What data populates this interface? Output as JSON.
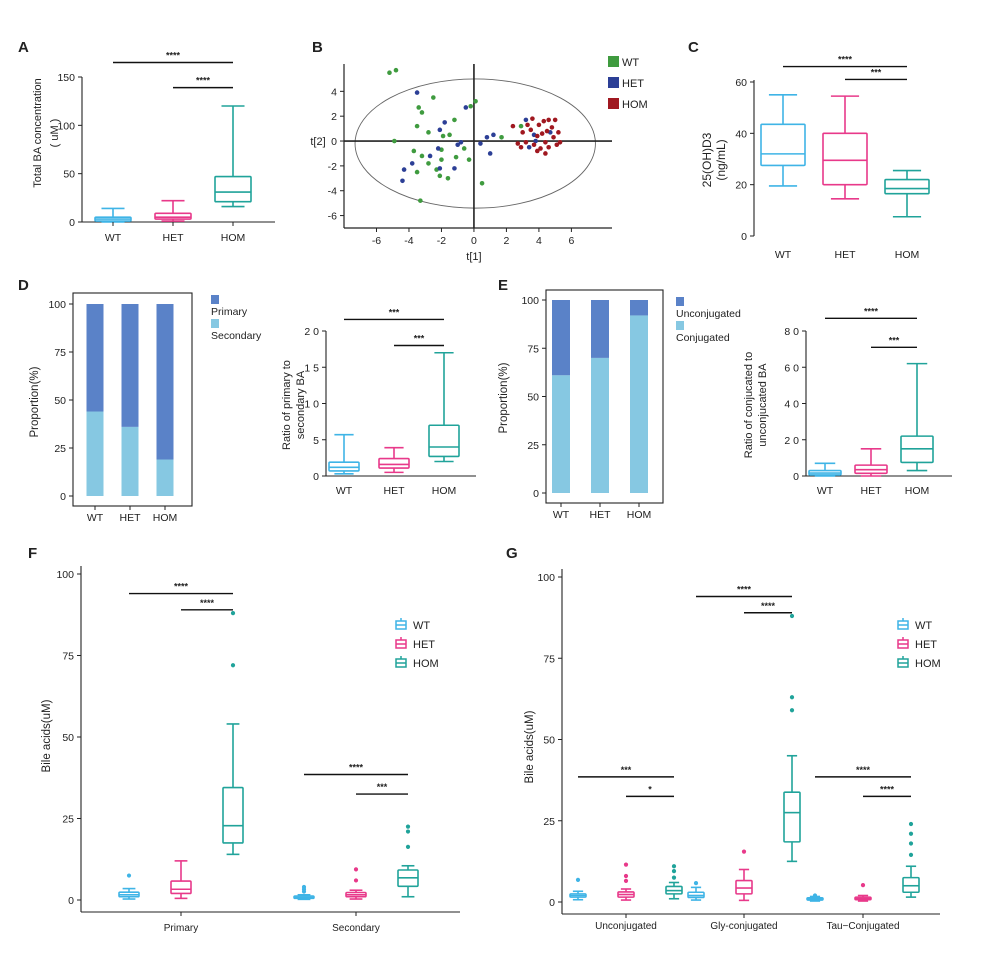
{
  "colors": {
    "WT": "#3fb4e6",
    "HET": "#e8398a",
    "HOM": "#20a39a",
    "pcaWT": "#3f9b3f",
    "pcaHET": "#2c3f96",
    "pcaHOM": "#a01820",
    "dark": "#5a82c8",
    "light": "#86c8e2"
  },
  "panel_labels": [
    "A",
    "B",
    "C",
    "D",
    "E",
    "F",
    "G"
  ],
  "chart_data": [
    {
      "id": "A",
      "type": "box",
      "ylabel": "Total BA concentration (uM)",
      "categories": [
        "WT",
        "HET",
        "HOM"
      ],
      "ylim": [
        0,
        150
      ],
      "yticks": [
        0,
        50,
        100,
        150
      ],
      "boxes": [
        {
          "group": "WT",
          "min": 0,
          "q1": 1,
          "median": 3,
          "q3": 5,
          "max": 14
        },
        {
          "group": "HET",
          "min": 1,
          "q1": 3,
          "median": 5,
          "q3": 9,
          "max": 22
        },
        {
          "group": "HOM",
          "min": 16,
          "q1": 21,
          "median": 31,
          "q3": 47,
          "max": 120
        }
      ],
      "sig": [
        {
          "from": 0,
          "to": 2,
          "label": "****",
          "y": 165
        },
        {
          "from": 1,
          "to": 2,
          "label": "****",
          "y": 139
        }
      ]
    },
    {
      "id": "B",
      "type": "scatter",
      "xlabel": "t[1]",
      "ylabel": "t[2]",
      "xticks": [
        -6,
        -4,
        -2,
        0,
        2,
        4,
        6
      ],
      "yticks": [
        -6,
        -4,
        -2,
        0,
        2,
        4
      ],
      "xlim": [
        -8,
        8.5
      ],
      "ylim": [
        -7,
        6.2
      ],
      "legend": [
        "WT",
        "HET",
        "HOM"
      ],
      "series": [
        {
          "name": "WT",
          "points": [
            [
              -5.2,
              5.5
            ],
            [
              -4.8,
              5.7
            ],
            [
              -3.3,
              -4.8
            ],
            [
              -4.9,
              0
            ],
            [
              -3.5,
              1.2
            ],
            [
              -3.5,
              -2.5
            ],
            [
              -3.2,
              -1.2
            ],
            [
              -2.8,
              -1.8
            ],
            [
              -2.3,
              -2.3
            ],
            [
              -2.0,
              -1.5
            ],
            [
              -2.1,
              -2.8
            ],
            [
              -1.6,
              -3.0
            ],
            [
              -2.0,
              -0.7
            ],
            [
              -1.1,
              -1.3
            ],
            [
              -0.6,
              -0.6
            ],
            [
              -0.3,
              -1.5
            ],
            [
              0.5,
              -3.4
            ],
            [
              0.1,
              3.2
            ],
            [
              -2.5,
              3.5
            ],
            [
              -3.2,
              2.3
            ],
            [
              -3.4,
              2.7
            ],
            [
              -2.8,
              0.7
            ],
            [
              -1.9,
              0.4
            ],
            [
              -1.2,
              1.7
            ],
            [
              -1.5,
              0.5
            ],
            [
              -0.2,
              2.8
            ],
            [
              1.7,
              0.3
            ],
            [
              2.9,
              1.2
            ],
            [
              -3.7,
              -0.8
            ]
          ]
        },
        {
          "name": "HET",
          "points": [
            [
              -3.8,
              -1.8
            ],
            [
              -4.3,
              -2.3
            ],
            [
              -4.4,
              -3.2
            ],
            [
              -3.5,
              3.9
            ],
            [
              -2.7,
              -1.2
            ],
            [
              -2.1,
              -2.2
            ],
            [
              -2.2,
              -0.6
            ],
            [
              -1.8,
              1.5
            ],
            [
              -2.1,
              0.9
            ],
            [
              -1.0,
              -0.3
            ],
            [
              -1.2,
              -2.2
            ],
            [
              -0.8,
              -0.1
            ],
            [
              -0.5,
              2.7
            ],
            [
              0.4,
              -0.2
            ],
            [
              0.8,
              0.3
            ],
            [
              1.2,
              0.5
            ],
            [
              1.0,
              -1.0
            ],
            [
              3.7,
              0.5
            ],
            [
              3.2,
              1.7
            ],
            [
              3.8,
              0.0
            ],
            [
              3.4,
              -0.5
            ],
            [
              4.7,
              0.7
            ]
          ]
        },
        {
          "name": "HOM",
          "points": [
            [
              2.4,
              1.2
            ],
            [
              3.0,
              0.7
            ],
            [
              3.2,
              -0.1
            ],
            [
              3.5,
              0.9
            ],
            [
              3.7,
              -0.3
            ],
            [
              3.9,
              0.4
            ],
            [
              4.0,
              1.3
            ],
            [
              4.1,
              -0.6
            ],
            [
              4.2,
              0.6
            ],
            [
              4.3,
              1.6
            ],
            [
              4.4,
              -0.1
            ],
            [
              4.5,
              0.8
            ],
            [
              4.6,
              -0.5
            ],
            [
              4.8,
              1.1
            ],
            [
              4.9,
              0.3
            ],
            [
              5.1,
              -0.3
            ],
            [
              5.2,
              0.7
            ],
            [
              5.0,
              1.7
            ],
            [
              4.6,
              1.7
            ],
            [
              3.6,
              1.8
            ],
            [
              3.3,
              1.3
            ],
            [
              2.7,
              -0.2
            ],
            [
              5.3,
              -0.1
            ],
            [
              3.9,
              -0.8
            ],
            [
              4.4,
              -1.0
            ],
            [
              2.9,
              -0.5
            ]
          ]
        }
      ]
    },
    {
      "id": "C",
      "type": "box",
      "ylabel": "25(OH)D3 (ng/mL)",
      "categories": [
        "WT",
        "HET",
        "HOM"
      ],
      "ylim": [
        0,
        60
      ],
      "yticks": [
        0,
        20,
        40,
        60
      ],
      "boxes": [
        {
          "group": "WT",
          "min": 19.5,
          "q1": 27.5,
          "median": 32,
          "q3": 43.5,
          "max": 55
        },
        {
          "group": "HET",
          "min": 14.5,
          "q1": 20,
          "median": 29.5,
          "q3": 40,
          "max": 54.5
        },
        {
          "group": "HOM",
          "min": 7.5,
          "q1": 16.5,
          "median": 18.5,
          "q3": 22,
          "max": 25.5
        }
      ],
      "sig": [
        {
          "from": 0,
          "to": 2,
          "label": "****",
          "y": 66
        },
        {
          "from": 1,
          "to": 2,
          "label": "***",
          "y": 61
        }
      ]
    },
    {
      "id": "D-stack",
      "type": "stacked-bar",
      "ylabel": "Proportion(%)",
      "categories": [
        "WT",
        "HET",
        "HOM"
      ],
      "ylim": [
        0,
        100
      ],
      "yticks": [
        0,
        25,
        50,
        75,
        100
      ],
      "series": [
        {
          "name": "Secondary",
          "values": [
            44,
            36,
            19
          ]
        },
        {
          "name": "Primary",
          "values": [
            56,
            64,
            81
          ]
        }
      ],
      "legend": [
        "Primary",
        "Secondary"
      ]
    },
    {
      "id": "D-box",
      "type": "box",
      "ylabel": "Ratio of primary to secondary BA",
      "categories": [
        "WT",
        "HET",
        "HOM"
      ],
      "ylim": [
        0,
        20
      ],
      "yticks": [
        0,
        5,
        10,
        15,
        20
      ],
      "yticklabels": [
        "0",
        "5",
        "1 0",
        "1 5",
        "2 0"
      ],
      "boxes": [
        {
          "group": "WT",
          "min": 0.3,
          "q1": 0.7,
          "median": 1.2,
          "q3": 1.9,
          "max": 5.7
        },
        {
          "group": "HET",
          "min": 0.5,
          "q1": 1.1,
          "median": 1.6,
          "q3": 2.4,
          "max": 3.9
        },
        {
          "group": "HOM",
          "min": 2.0,
          "q1": 2.7,
          "median": 4.0,
          "q3": 7.0,
          "max": 17.0
        }
      ],
      "sig": [
        {
          "from": 0,
          "to": 2,
          "label": "***",
          "y": 21.6
        },
        {
          "from": 1,
          "to": 2,
          "label": "***",
          "y": 18.0
        }
      ]
    },
    {
      "id": "E-stack",
      "type": "stacked-bar",
      "ylabel": "Proportion(%)",
      "categories": [
        "WT",
        "HET",
        "HOM"
      ],
      "ylim": [
        0,
        100
      ],
      "yticks": [
        0,
        25,
        50,
        75,
        100
      ],
      "series": [
        {
          "name": "Conjugated",
          "values": [
            61,
            70,
            92
          ]
        },
        {
          "name": "Unconjugated",
          "values": [
            39,
            30,
            8
          ]
        }
      ],
      "legend": [
        "Unconjugated",
        "Conjugated"
      ]
    },
    {
      "id": "E-box",
      "type": "box",
      "ylabel": "Ratio of conjucated to unconjucated BA",
      "categories": [
        "WT",
        "HET",
        "HOM"
      ],
      "ylim": [
        0,
        80
      ],
      "yticks": [
        0,
        20,
        40,
        60,
        80
      ],
      "yticklabels": [
        "0",
        "2 0",
        "4 0",
        "6 0",
        "8 0"
      ],
      "boxes": [
        {
          "group": "WT",
          "min": 0,
          "q1": 0.6,
          "median": 1.6,
          "q3": 3.0,
          "max": 7.0
        },
        {
          "group": "HET",
          "min": 0,
          "q1": 1.5,
          "median": 3.5,
          "q3": 6.0,
          "max": 15.0
        },
        {
          "group": "HOM",
          "min": 3.0,
          "q1": 7.5,
          "median": 15.0,
          "q3": 22.0,
          "max": 62.0
        }
      ],
      "sig": [
        {
          "from": 0,
          "to": 2,
          "label": "****",
          "y": 87
        },
        {
          "from": 1,
          "to": 2,
          "label": "***",
          "y": 71
        }
      ]
    },
    {
      "id": "F",
      "type": "grouped-box",
      "ylabel": "Bile acids(uM)",
      "categories": [
        "Primary",
        "Secondary"
      ],
      "ylim": [
        0,
        100
      ],
      "yticks": [
        0,
        25,
        50,
        75,
        100
      ],
      "legend": [
        "WT",
        "HET",
        "HOM"
      ],
      "boxes": [
        {
          "cat": 0,
          "group": "WT",
          "min": 0.3,
          "q1": 1.0,
          "median": 1.6,
          "q3": 2.4,
          "max": 3.5,
          "outliers": [
            7.5
          ]
        },
        {
          "cat": 0,
          "group": "HET",
          "min": 0.5,
          "q1": 2.0,
          "median": 3.3,
          "q3": 5.8,
          "max": 12.0,
          "outliers": []
        },
        {
          "cat": 0,
          "group": "HOM",
          "min": 14.0,
          "q1": 17.5,
          "median": 22.8,
          "q3": 34.5,
          "max": 54.0,
          "outliers": [
            72,
            88
          ]
        },
        {
          "cat": 1,
          "group": "WT",
          "min": 0.2,
          "q1": 0.5,
          "median": 0.8,
          "q3": 1.2,
          "max": 1.6,
          "outliers": [
            2.6,
            3.3,
            4.0
          ]
        },
        {
          "cat": 1,
          "group": "HET",
          "min": 0.3,
          "q1": 1.0,
          "median": 1.6,
          "q3": 2.3,
          "max": 3.0,
          "outliers": [
            6.0,
            9.4
          ]
        },
        {
          "cat": 1,
          "group": "HOM",
          "min": 1.0,
          "q1": 4.2,
          "median": 6.8,
          "q3": 9.2,
          "max": 10.5,
          "outliers": [
            16.3,
            21.0,
            22.5
          ]
        }
      ],
      "sig": [
        {
          "cat": 0,
          "from": 0,
          "to": 2,
          "label": "****",
          "y": 94
        },
        {
          "cat": 0,
          "from": 1,
          "to": 2,
          "label": "****",
          "y": 89
        },
        {
          "cat": 1,
          "from": 0,
          "to": 2,
          "label": "****",
          "y": 38.5
        },
        {
          "cat": 1,
          "from": 1,
          "to": 2,
          "label": "***",
          "y": 32.5
        }
      ]
    },
    {
      "id": "G",
      "type": "grouped-box",
      "ylabel": "Bile acids(uM)",
      "categories": [
        "Unconjugated",
        "Gly-conjugated",
        "Tau−Conjugated"
      ],
      "ylim": [
        0,
        100
      ],
      "yticks": [
        0,
        25,
        50,
        75,
        100
      ],
      "legend": [
        "WT",
        "HET",
        "HOM"
      ],
      "boxes": [
        {
          "cat": 0,
          "group": "WT",
          "min": 0.7,
          "q1": 1.5,
          "median": 2.0,
          "q3": 2.5,
          "max": 3.3,
          "outliers": [
            6.8
          ]
        },
        {
          "cat": 0,
          "group": "HET",
          "min": 0.6,
          "q1": 1.5,
          "median": 2.3,
          "q3": 3.1,
          "max": 4.0,
          "outliers": [
            6.5,
            8.0,
            11.5
          ]
        },
        {
          "cat": 0,
          "group": "HOM",
          "min": 1.0,
          "q1": 2.5,
          "median": 3.5,
          "q3": 4.8,
          "max": 6.0,
          "outliers": [
            7.5,
            9.5,
            11.0
          ]
        },
        {
          "cat": 1,
          "group": "WT",
          "min": 0.6,
          "q1": 1.4,
          "median": 2.0,
          "q3": 3.0,
          "max": 4.5,
          "outliers": [
            5.8
          ]
        },
        {
          "cat": 1,
          "group": "HET",
          "min": 0.5,
          "q1": 2.5,
          "median": 4.3,
          "q3": 6.6,
          "max": 10.0,
          "outliers": [
            15.5
          ]
        },
        {
          "cat": 1,
          "group": "HOM",
          "min": 12.5,
          "q1": 18.5,
          "median": 27.5,
          "q3": 33.8,
          "max": 45.0,
          "outliers": [
            59,
            63,
            88
          ]
        },
        {
          "cat": 2,
          "group": "WT",
          "min": 0.3,
          "q1": 0.6,
          "median": 0.9,
          "q3": 1.3,
          "max": 1.7,
          "outliers": [
            2.0
          ]
        },
        {
          "cat": 2,
          "group": "HET",
          "min": 0.3,
          "q1": 0.7,
          "median": 1.1,
          "q3": 1.5,
          "max": 2.0,
          "outliers": [
            5.2
          ]
        },
        {
          "cat": 2,
          "group": "HOM",
          "min": 1.5,
          "q1": 3.0,
          "median": 5.0,
          "q3": 7.5,
          "max": 11.0,
          "outliers": [
            14.5,
            18.0,
            21.0,
            24.0
          ]
        }
      ],
      "sig": [
        {
          "cat": 1,
          "from": 0,
          "to": 2,
          "label": "****",
          "y": 94
        },
        {
          "cat": 1,
          "from": 1,
          "to": 2,
          "label": "****",
          "y": 89
        },
        {
          "cat": 0,
          "from": 0,
          "to": 2,
          "label": "***",
          "y": 38.5
        },
        {
          "cat": 0,
          "from": 1,
          "to": 2,
          "label": "*",
          "y": 32.5
        },
        {
          "cat": 2,
          "from": 0,
          "to": 2,
          "label": "****",
          "y": 38.5
        },
        {
          "cat": 2,
          "from": 1,
          "to": 2,
          "label": "****",
          "y": 32.5
        }
      ]
    }
  ]
}
